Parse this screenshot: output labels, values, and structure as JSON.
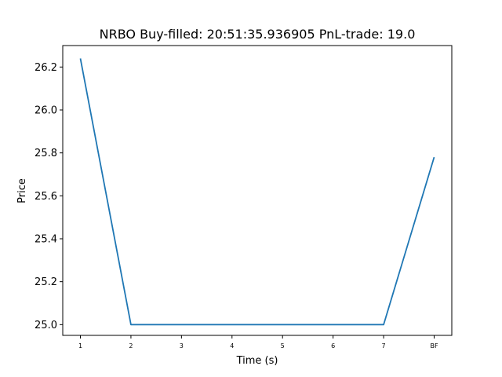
{
  "chart_data": {
    "type": "line",
    "title": "NRBO  Buy-filled:  20:51:35.936905  PnL-trade:  19.0",
    "xlabel": "Time (s)",
    "ylabel": "Price",
    "categories": [
      "1",
      "2",
      "3",
      "4",
      "5",
      "6",
      "7",
      "BF"
    ],
    "series": [
      {
        "values": [
          26.24,
          25.0,
          25.0,
          25.0,
          25.0,
          25.0,
          25.0,
          25.78
        ]
      }
    ],
    "yticks": [
      "25.0",
      "25.2",
      "25.4",
      "25.6",
      "25.8",
      "26.0",
      "26.2"
    ],
    "ytick_values": [
      25.0,
      25.2,
      25.4,
      25.6,
      25.8,
      26.0,
      26.2
    ],
    "ylim": [
      24.95,
      26.3
    ],
    "grid": false,
    "colors": {
      "line": "#1f77b4"
    }
  }
}
